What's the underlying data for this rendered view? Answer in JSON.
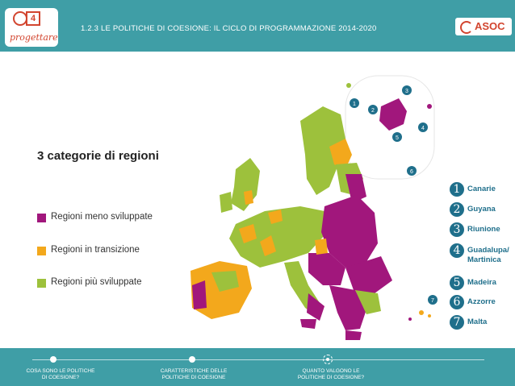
{
  "header": {
    "title": "1.2.3 LE POLITICHE DI COESIONE: IL CICLO DI PROGRAMMAZIONE 2014-2020",
    "logo_left": "progettare",
    "logo_right": "ASOC"
  },
  "main": {
    "heading": "3 categorie di regioni",
    "legend": [
      {
        "label": "Regioni meno sviluppate",
        "color": "#a1177c"
      },
      {
        "label": "Regioni in transizione",
        "color": "#f3a81c"
      },
      {
        "label": "Regioni più sviluppate",
        "color": "#9dc13c"
      }
    ],
    "outermost": [
      {
        "num": "1",
        "label": "Canarie"
      },
      {
        "num": "2",
        "label": "Guyana"
      },
      {
        "num": "3",
        "label": "Riunione"
      },
      {
        "num": "4",
        "label": "Guadalupa/\nMartinica"
      },
      {
        "num": "5",
        "label": "Madeira"
      },
      {
        "num": "6",
        "label": "Azzorre"
      },
      {
        "num": "7",
        "label": "Malta"
      }
    ]
  },
  "footer": {
    "items": [
      {
        "label": "COSA SONO LE POLITICHE\nDI COESIONE?"
      },
      {
        "label": "CARATTERISTICHE DELLE\nPOLITICHE DI COESIONE"
      },
      {
        "label": "QUANTO VALGONO LE\nPOLITICHE DI COESIONE?"
      }
    ]
  }
}
